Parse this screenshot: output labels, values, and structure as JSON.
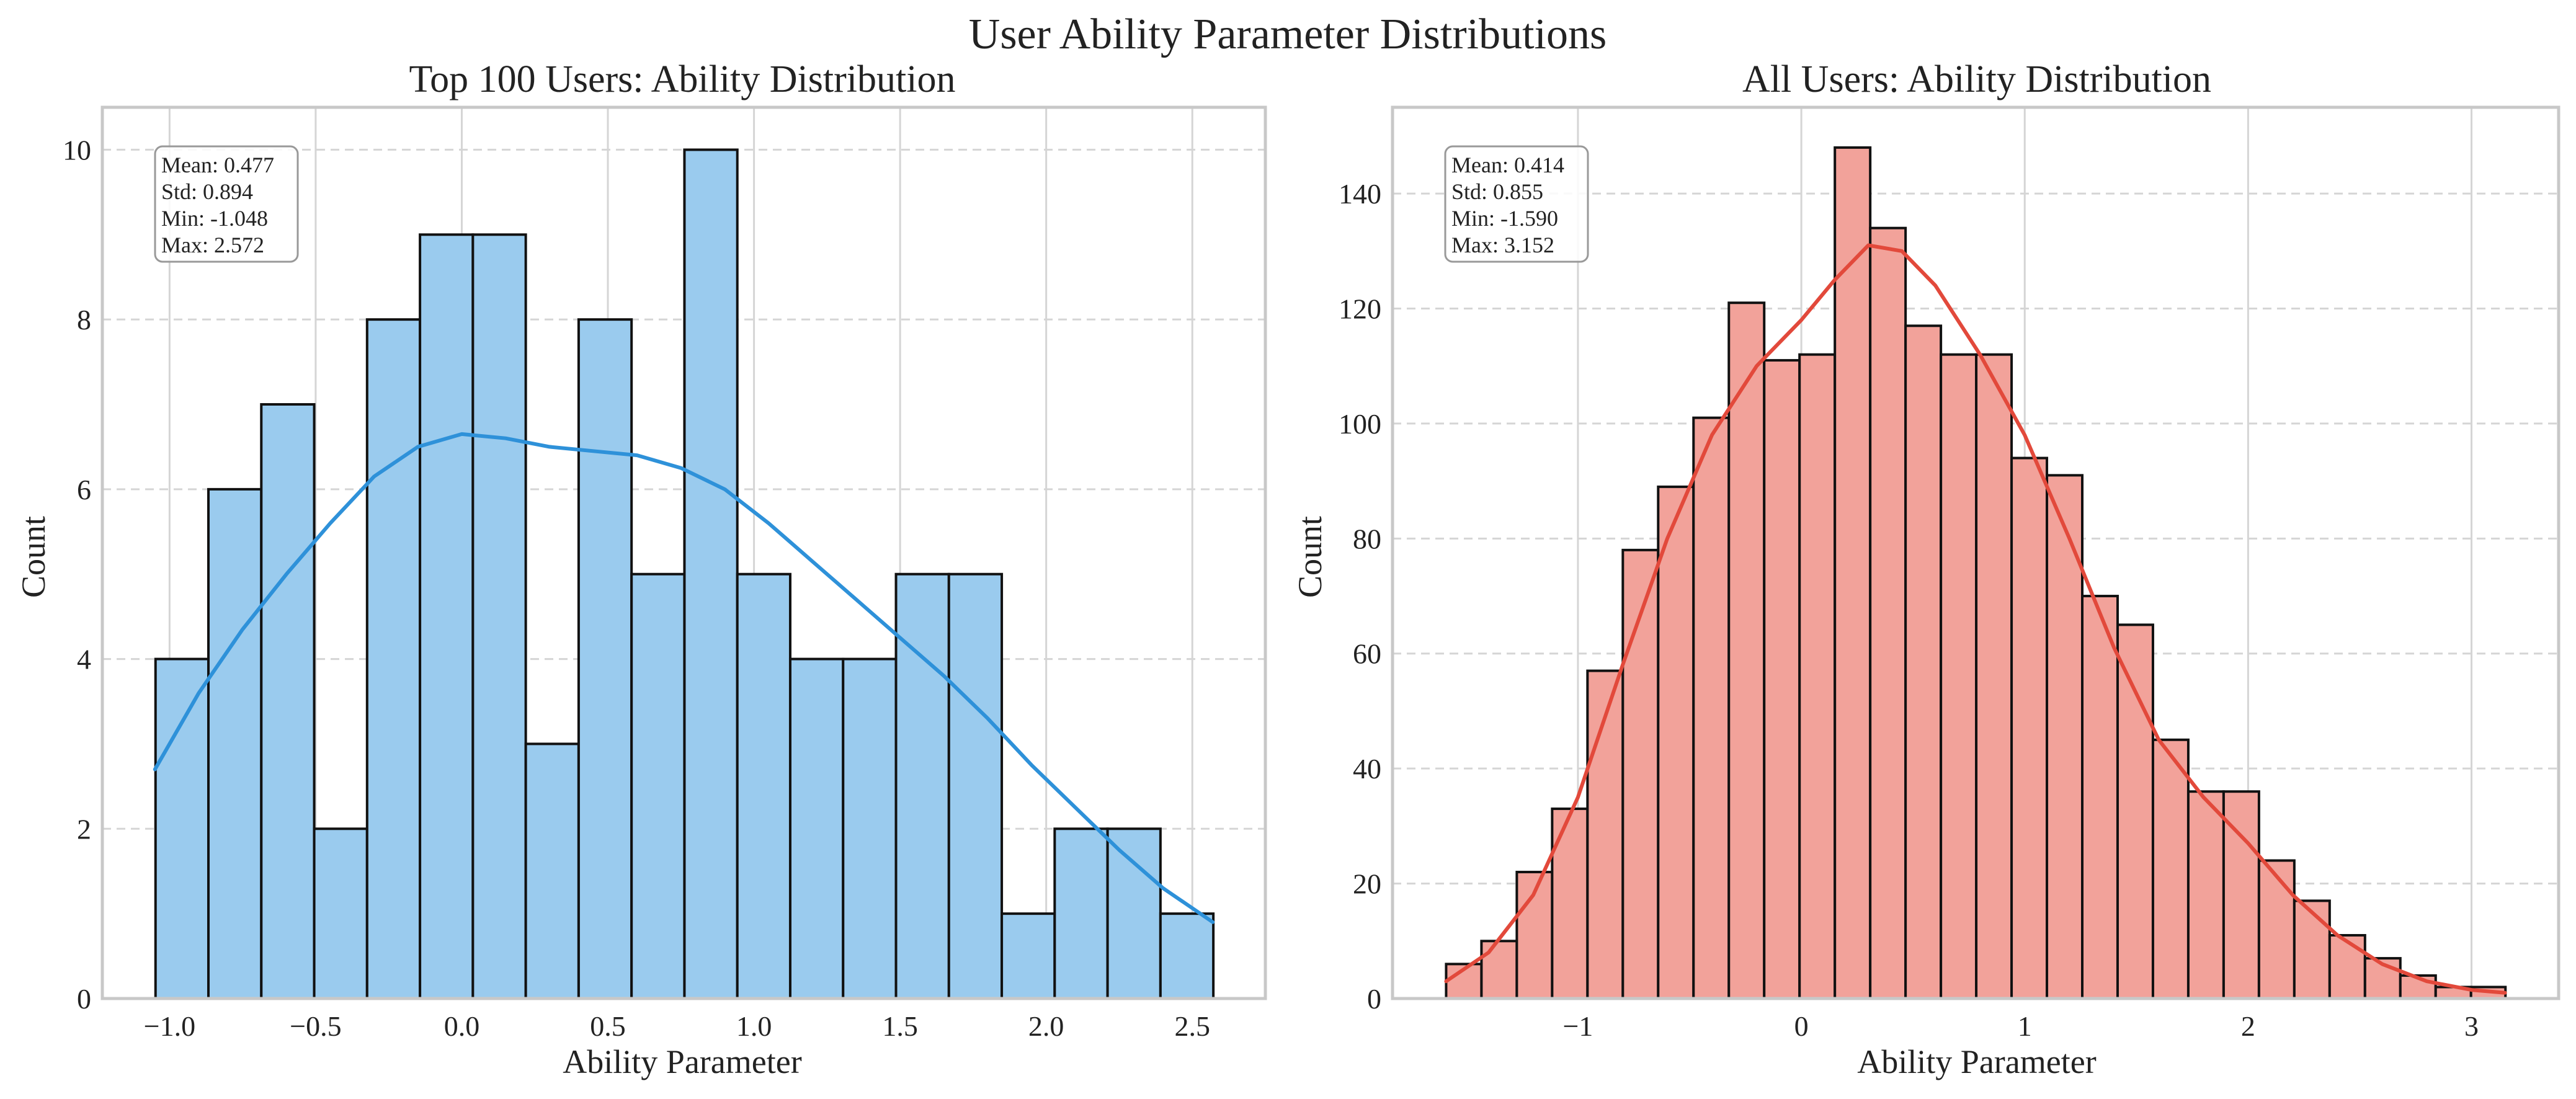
{
  "figure": {
    "suptitle": "User Ability Parameter Distributions"
  },
  "chart_data": [
    {
      "type": "bar",
      "title": "Top 100 Users: Ability Distribution",
      "xlabel": "Ability Parameter",
      "ylabel": "Count",
      "xlim": [
        -1.23,
        2.75
      ],
      "ylim": [
        0,
        10.5
      ],
      "xticks": [
        "−1.0",
        "−0.5",
        "0.0",
        "0.5",
        "1.0",
        "1.5",
        "2.0",
        "2.5"
      ],
      "xtick_values": [
        -1.0,
        -0.5,
        0.0,
        0.5,
        1.0,
        1.5,
        2.0,
        2.5
      ],
      "yticks": [
        "0",
        "2",
        "4",
        "6",
        "8",
        "10"
      ],
      "ytick_values": [
        0,
        2,
        4,
        6,
        8,
        10
      ],
      "bin_edges": [
        -1.048,
        -0.867,
        -0.686,
        -0.505,
        -0.324,
        -0.143,
        0.038,
        0.219,
        0.4,
        0.581,
        0.762,
        0.943,
        1.124,
        1.305,
        1.486,
        1.667,
        1.848,
        2.029,
        2.21,
        2.391,
        2.572
      ],
      "values": [
        4,
        6,
        7,
        2,
        8,
        9,
        9,
        3,
        8,
        5,
        10,
        5,
        4,
        4,
        5,
        5,
        1,
        2,
        2,
        1
      ],
      "kde_x": [
        -1.05,
        -0.9,
        -0.75,
        -0.6,
        -0.45,
        -0.3,
        -0.15,
        0.0,
        0.15,
        0.3,
        0.45,
        0.6,
        0.75,
        0.9,
        1.05,
        1.2,
        1.35,
        1.5,
        1.65,
        1.8,
        1.95,
        2.1,
        2.25,
        2.4,
        2.57
      ],
      "kde_y": [
        2.7,
        3.6,
        4.35,
        5.0,
        5.6,
        6.15,
        6.5,
        6.65,
        6.6,
        6.5,
        6.45,
        6.4,
        6.25,
        6.0,
        5.6,
        5.15,
        4.7,
        4.25,
        3.8,
        3.3,
        2.75,
        2.25,
        1.75,
        1.3,
        0.9
      ],
      "bar_color": "#9acbee",
      "kde_color": "#2e91d9",
      "stats": [
        "Mean: 0.477",
        "Std: 0.894",
        "Min: -1.048",
        "Max: 2.572"
      ],
      "grid": true
    },
    {
      "type": "bar",
      "title": "All Users: Ability Distribution",
      "xlabel": "Ability Parameter",
      "ylabel": "Count",
      "xlim": [
        -1.83,
        3.39
      ],
      "ylim": [
        0,
        155
      ],
      "xticks": [
        "−1",
        "0",
        "1",
        "2",
        "3"
      ],
      "xtick_values": [
        -1,
        0,
        1,
        2,
        3
      ],
      "yticks": [
        "0",
        "20",
        "40",
        "60",
        "80",
        "100",
        "120",
        "140"
      ],
      "ytick_values": [
        0,
        20,
        40,
        60,
        80,
        100,
        120,
        140
      ],
      "bin_edges": [
        -1.59,
        -1.4318,
        -1.2736,
        -1.1154,
        -0.9572,
        -0.799,
        -0.6408,
        -0.4826,
        -0.3244,
        -0.1662,
        -0.008,
        0.1502,
        0.3084,
        0.4666,
        0.6248,
        0.783,
        0.9412,
        1.0994,
        1.2576,
        1.4158,
        1.574,
        1.7322,
        1.8904,
        2.0486,
        2.2068,
        2.365,
        2.5232,
        2.6814,
        2.8396,
        2.9978,
        3.152
      ],
      "values": [
        6,
        10,
        22,
        33,
        57,
        78,
        89,
        101,
        121,
        111,
        112,
        148,
        134,
        117,
        112,
        112,
        94,
        91,
        70,
        65,
        45,
        36,
        36,
        24,
        17,
        11,
        7,
        4,
        2,
        2
      ],
      "kde_x": [
        -1.59,
        -1.4,
        -1.2,
        -1.0,
        -0.8,
        -0.6,
        -0.4,
        -0.2,
        0.0,
        0.15,
        0.3,
        0.45,
        0.6,
        0.8,
        1.0,
        1.2,
        1.4,
        1.6,
        1.8,
        2.0,
        2.2,
        2.4,
        2.6,
        2.8,
        3.0,
        3.15
      ],
      "kde_y": [
        3,
        8,
        18,
        35,
        58,
        80,
        98,
        110,
        118,
        125,
        131,
        130,
        124,
        112,
        98,
        80,
        61,
        45,
        35,
        27,
        18,
        11,
        6,
        3,
        1.5,
        1
      ],
      "bar_color": "#f2a29a",
      "kde_color": "#e2493b",
      "stats": [
        "Mean: 0.414",
        "Std: 0.855",
        "Min: -1.590",
        "Max: 3.152"
      ],
      "grid": true
    }
  ]
}
